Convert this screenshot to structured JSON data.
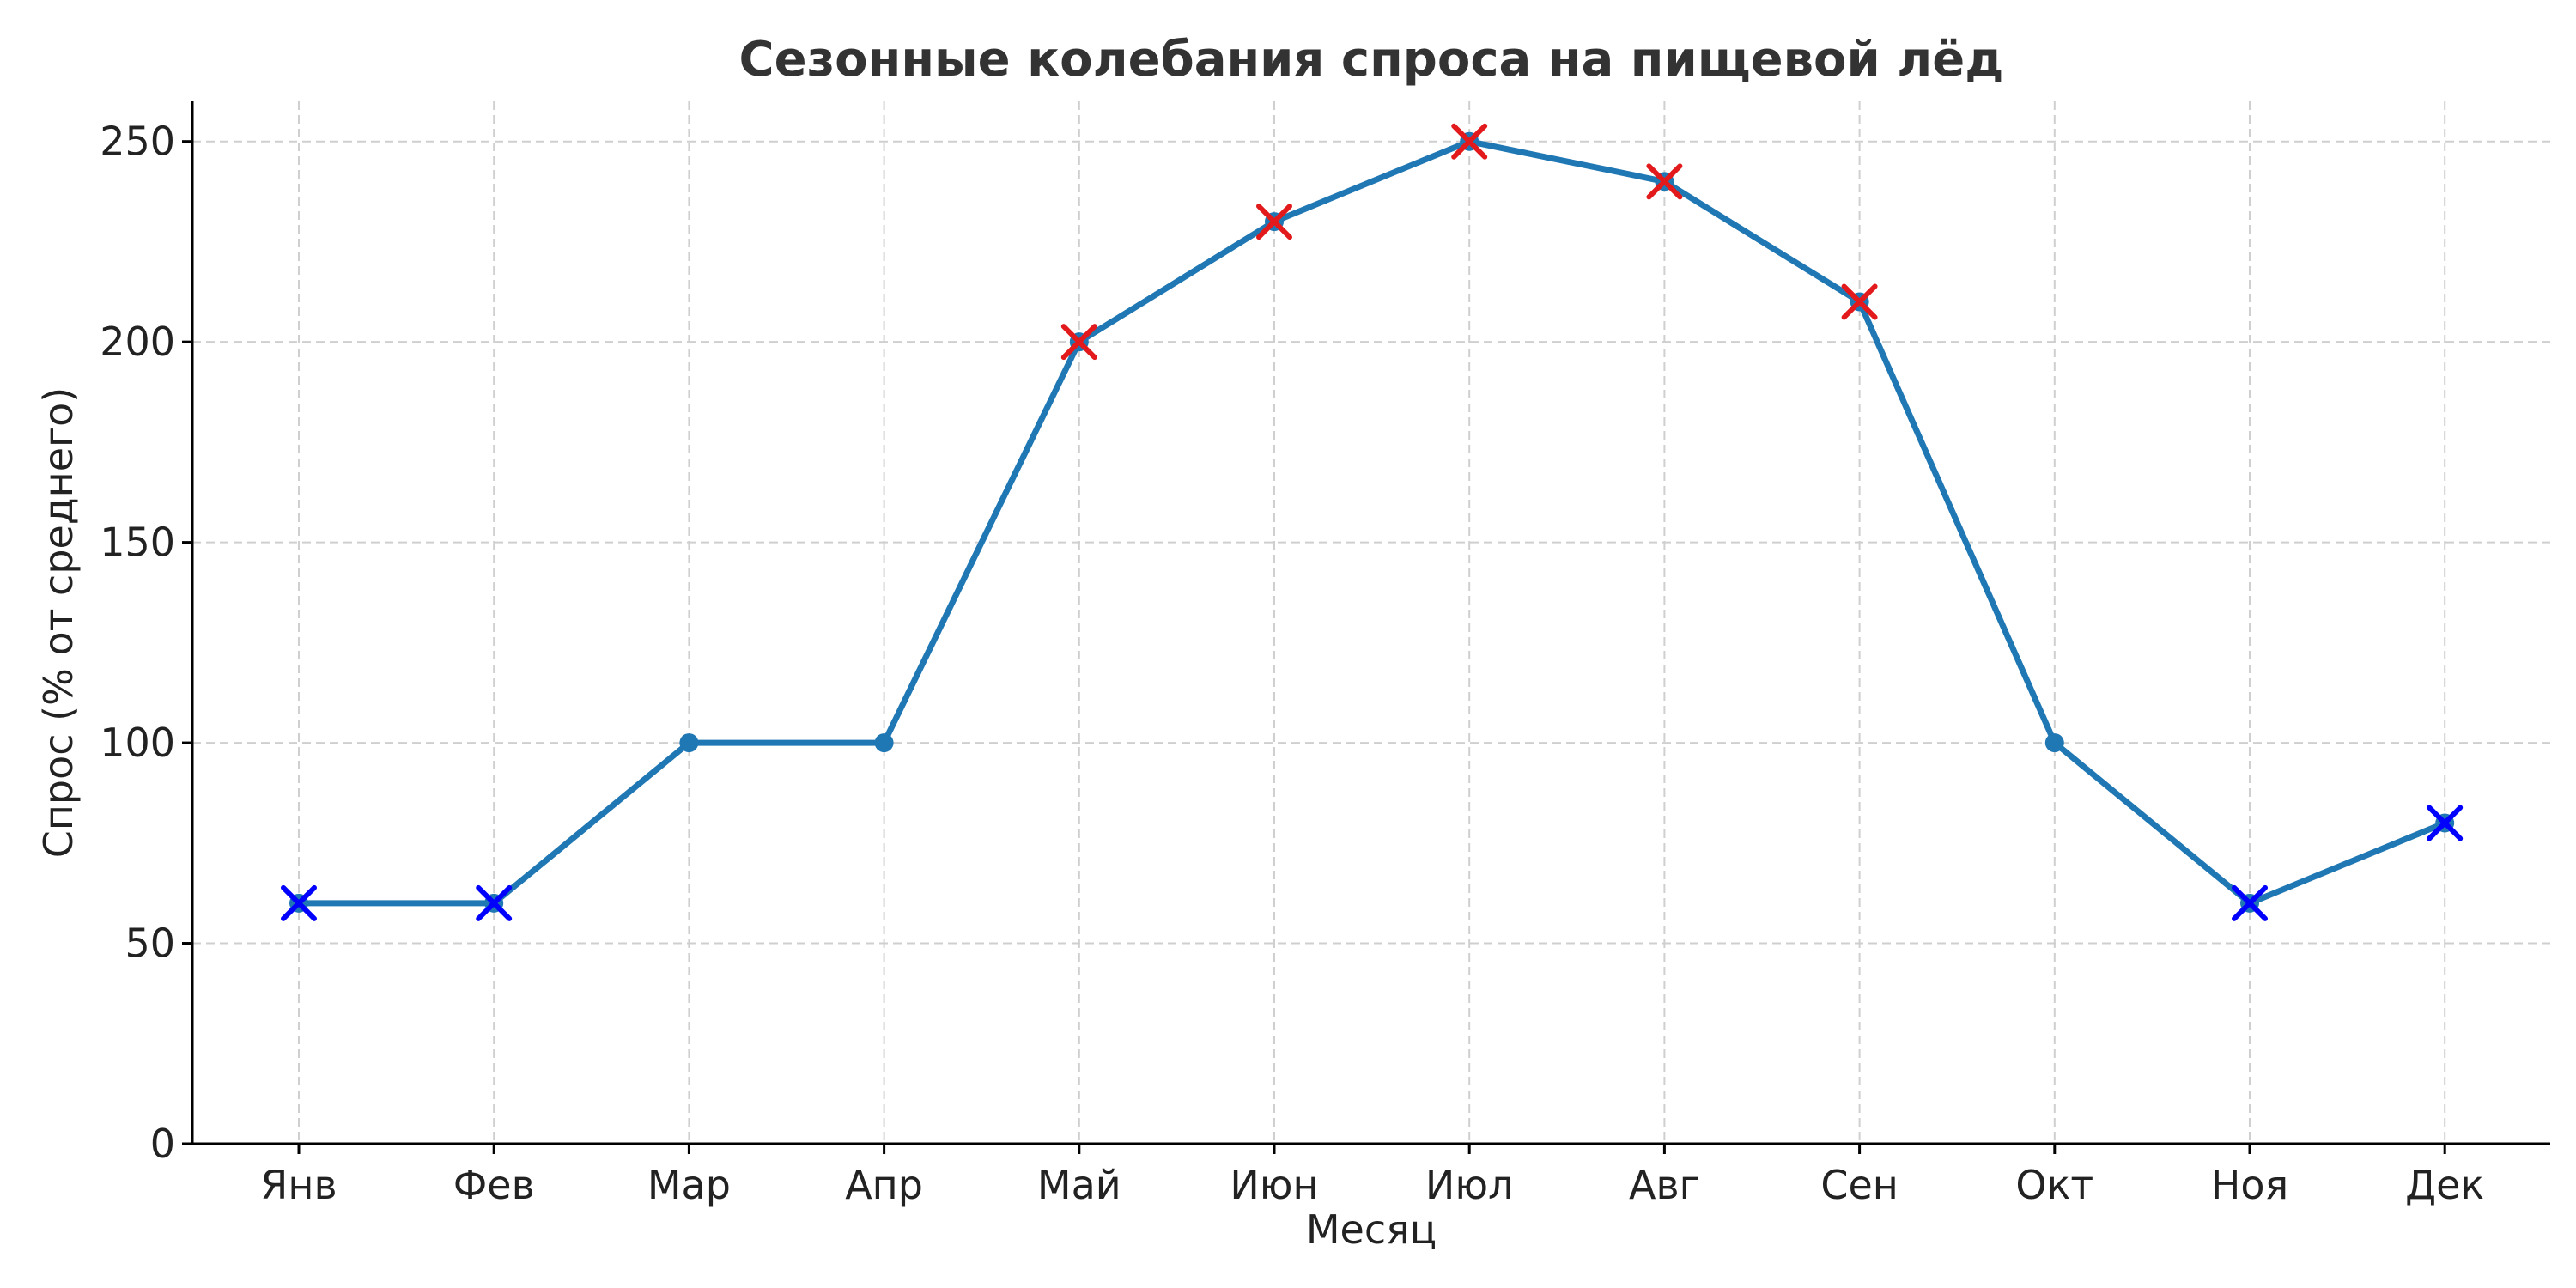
{
  "chart_data": {
    "type": "line",
    "title": "Сезонные колебания спроса на пищевой лёд",
    "xlabel": "Месяц",
    "ylabel": "Спрос (% от среднего)",
    "categories": [
      "Янв",
      "Фев",
      "Мар",
      "Апр",
      "Май",
      "Июн",
      "Июл",
      "Авг",
      "Сен",
      "Окт",
      "Ноя",
      "Дек"
    ],
    "series": [
      {
        "values": [
          60,
          60,
          100,
          100,
          200,
          230,
          250,
          240,
          210,
          100,
          60,
          80
        ],
        "color": "#1f77b4"
      }
    ],
    "high_markers": {
      "months": [
        "Май",
        "Июн",
        "Июл",
        "Авг",
        "Сен"
      ],
      "color": "#e31a1c",
      "marker": "x"
    },
    "low_markers": {
      "months": [
        "Янв",
        "Фев",
        "Ноя",
        "Дек"
      ],
      "color": "#0000ff",
      "marker": "x"
    },
    "ylim": [
      0,
      260
    ],
    "yticks": [
      0,
      50,
      100,
      150,
      200,
      250
    ],
    "grid": true
  }
}
